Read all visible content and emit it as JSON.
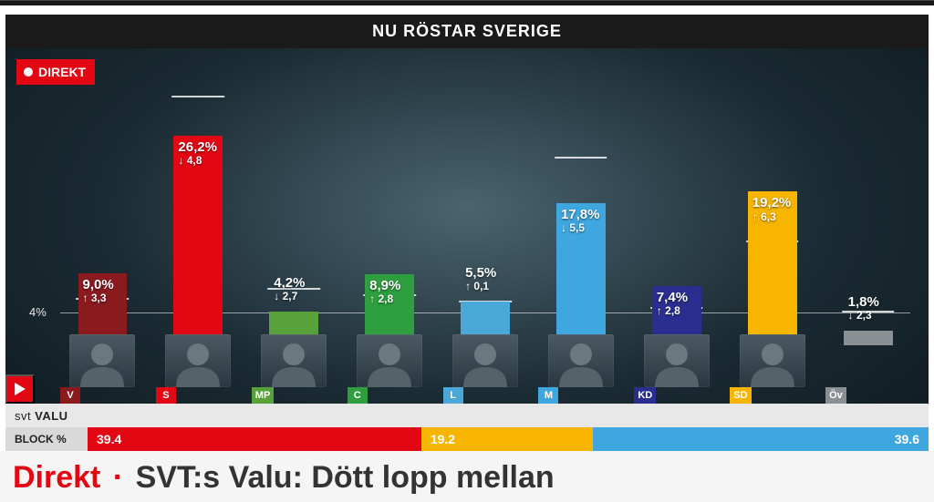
{
  "page": {
    "title": "NU RÖSTAR SVERIGE",
    "direkt_badge": "DIREKT",
    "valu_brand_svt": "svt",
    "valu_brand_text": "VALU",
    "block_label": "BLOCK %"
  },
  "threshold": {
    "value_pct": 4,
    "label": "4%"
  },
  "chart": {
    "y_max": 33,
    "bar_width_pct": 58,
    "background_gradient": [
      "#4a6470",
      "#1b2b33",
      "#0e1a20"
    ],
    "label_color": "#ffffff",
    "parties": [
      {
        "code": "V",
        "color": "#8b1a1f",
        "value": 9.0,
        "value_label": "9,0%",
        "delta": 3.3,
        "delta_label": "3,3",
        "direction": "up",
        "prev": 5.7,
        "portrait": true
      },
      {
        "code": "S",
        "color": "#e30613",
        "value": 26.2,
        "value_label": "26,2%",
        "delta": 4.8,
        "delta_label": "4,8",
        "direction": "down",
        "prev": 31.0,
        "portrait": true
      },
      {
        "code": "MP",
        "color": "#59a13a",
        "value": 4.2,
        "value_label": "4,2%",
        "delta": 2.7,
        "delta_label": "2,7",
        "direction": "down",
        "prev": 6.9,
        "portrait": true
      },
      {
        "code": "C",
        "color": "#2e9e3f",
        "value": 8.9,
        "value_label": "8,9%",
        "delta": 2.8,
        "delta_label": "2,8",
        "direction": "up",
        "prev": 6.1,
        "portrait": true
      },
      {
        "code": "L",
        "color": "#4aa8d8",
        "value": 5.5,
        "value_label": "5,5%",
        "delta": 0.1,
        "delta_label": "0,1",
        "direction": "up",
        "prev": 5.4,
        "portrait": true
      },
      {
        "code": "M",
        "color": "#3fa7e0",
        "value": 17.8,
        "value_label": "17,8%",
        "delta": 5.5,
        "delta_label": "5,5",
        "direction": "down",
        "prev": 23.3,
        "portrait": true
      },
      {
        "code": "KD",
        "color": "#2a2f8f",
        "value": 7.4,
        "value_label": "7,4%",
        "delta": 2.8,
        "delta_label": "2,8",
        "direction": "up",
        "prev": 4.6,
        "portrait": true
      },
      {
        "code": "SD",
        "color": "#f7b500",
        "value": 19.2,
        "value_label": "19,2%",
        "delta": 6.3,
        "delta_label": "6,3",
        "direction": "up",
        "prev": 12.9,
        "portrait": true
      },
      {
        "code": "Öv",
        "color": "#8a8f93",
        "value": 1.8,
        "value_label": "1,8%",
        "delta": 2.3,
        "delta_label": "2,3",
        "direction": "down",
        "prev": 4.1,
        "portrait": false
      }
    ]
  },
  "blocks": [
    {
      "color": "#e30613",
      "value": 39.4,
      "label": "39.4",
      "align": "left"
    },
    {
      "color": "#f7b500",
      "value": 19.2,
      "label": "19.2",
      "align": "left"
    },
    {
      "color": "#3fa7e0",
      "value": 39.6,
      "label": "39.6",
      "align": "right"
    }
  ],
  "headline": {
    "direkt": "Direkt",
    "separator": "·",
    "text": "SVT:s Valu: Dött lopp mellan"
  }
}
